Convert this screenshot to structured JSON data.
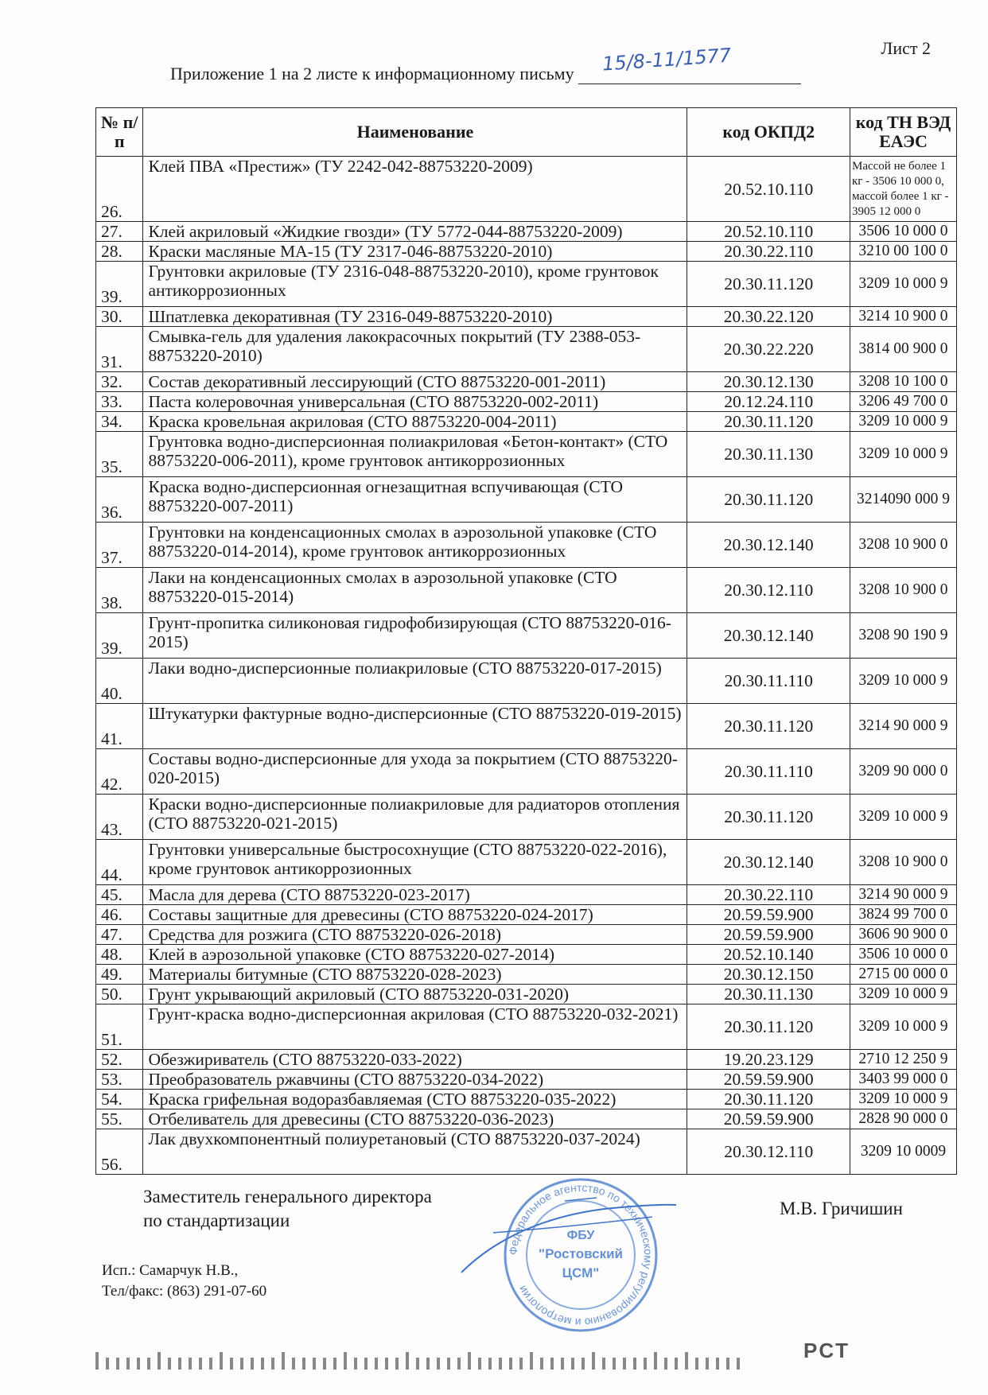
{
  "sheet_label": "Лист 2",
  "caption": "Приложение 1 на 2 листе к информационному письму",
  "handwritten_number": "15/8-11/1577",
  "table": {
    "headers": [
      "№ п/п",
      "Наименование",
      "код ОКПД2",
      "код ТН ВЭД ЕАЭС"
    ],
    "rows": [
      {
        "n": "26.",
        "name": "Клей ПВА «Престиж» (ТУ 2242-042-88753220-2009)",
        "okpd": "20.52.10.110",
        "tn": "Массой не более 1 кг - 3506 10 000 0, массой более 1 кг - 3905 12 000 0",
        "h": "big"
      },
      {
        "n": "27.",
        "name": "Клей акриловый «Жидкие гвозди» (ТУ 5772-044-88753220-2009)",
        "okpd": "20.52.10.110",
        "tn": "3506 10 000 0",
        "h": "s"
      },
      {
        "n": "28.",
        "name": "Краски масляные МА-15 (ТУ 2317-046-88753220-2010)",
        "okpd": "20.30.22.110",
        "tn": "3210 00 100 0",
        "h": "s"
      },
      {
        "n": "39.",
        "name": "Грунтовки акриловые (ТУ 2316-048-88753220-2010), кроме грунтовок антикоррозионных",
        "okpd": "20.30.11.120",
        "tn": "3209 10 000 9",
        "h": "d"
      },
      {
        "n": "30.",
        "name": "Шпатлевка декоративная  (ТУ 2316-049-88753220-2010)",
        "okpd": "20.30.22.120",
        "tn": "3214 10 900 0",
        "h": "s"
      },
      {
        "n": "31.",
        "name": "Смывка-гель для удаления лакокрасочных покрытий (ТУ 2388-053-88753220-2010)",
        "okpd": "20.30.22.220",
        "tn": "3814 00 900 0",
        "h": "d"
      },
      {
        "n": "32.",
        "name": "Состав декоративный лессирующий (СТО 88753220-001-2011)",
        "okpd": "20.30.12.130",
        "tn": "3208 10 100 0",
        "h": "s"
      },
      {
        "n": "33.",
        "name": "Паста колеровочная универсальная (СТО 88753220-002-2011)",
        "okpd": "20.12.24.110",
        "tn": "3206 49 700 0",
        "h": "s"
      },
      {
        "n": "34.",
        "name": "Краска кровельная акриловая (СТО 88753220-004-2011)",
        "okpd": "20.30.11.120",
        "tn": "3209 10 000 9",
        "h": "s"
      },
      {
        "n": "35.",
        "name": "Грунтовка водно-дисперсионная полиакриловая «Бетон-контакт» (СТО 88753220-006-2011), кроме грунтовок антикоррозионных",
        "okpd": "20.30.11.130",
        "tn": "3209 10 000 9",
        "h": "d"
      },
      {
        "n": "36.",
        "name": "Краска водно-дисперсионная огнезащитная вспучивающая (СТО 88753220-007-2011)",
        "okpd": "20.30.11.120",
        "tn": "3214090 000 9",
        "h": "d"
      },
      {
        "n": "37.",
        "name": "Грунтовки на конденсационных смолах в аэрозольной упаковке (СТО 88753220-014-2014), кроме грунтовок антикоррозионных",
        "okpd": "20.30.12.140",
        "tn": "3208 10 900 0",
        "h": "d"
      },
      {
        "n": "38.",
        "name": "Лаки на конденсационных смолах в аэрозольной упаковке (СТО 88753220-015-2014)",
        "okpd": "20.30.12.110",
        "tn": "3208 10 900 0",
        "h": "d"
      },
      {
        "n": "39.",
        "name": "Грунт-пропитка силиконовая гидрофобизирующая (СТО 88753220-016-2015)",
        "okpd": "20.30.12.140",
        "tn": "3208 90 190 9",
        "h": "d"
      },
      {
        "n": "40.",
        "name": "Лаки водно-дисперсионные полиакриловые (СТО 88753220-017-2015)",
        "okpd": "20.30.11.110",
        "tn": "3209 10 000 9",
        "h": "d"
      },
      {
        "n": "41.",
        "name": "Штукатурки фактурные водно-дисперсионные (СТО 88753220-019-2015)",
        "okpd": "20.30.11.120",
        "tn": "3214 90 000 9",
        "h": "d"
      },
      {
        "n": "42.",
        "name": "Составы водно-дисперсионные для ухода за покрытием (СТО 88753220-020-2015)",
        "okpd": "20.30.11.110",
        "tn": "3209 90 000 0",
        "h": "d"
      },
      {
        "n": "43.",
        "name": "Краски водно-дисперсионные полиакриловые для радиаторов отопления (СТО 88753220-021-2015)",
        "okpd": "20.30.11.120",
        "tn": "3209 10 000 9",
        "h": "d"
      },
      {
        "n": "44.",
        "name": "Грунтовки универсальные быстросохнущие (СТО 88753220-022-2016), кроме грунтовок антикоррозионных",
        "okpd": "20.30.12.140",
        "tn": "3208 10 900 0",
        "h": "d"
      },
      {
        "n": "45.",
        "name": "Масла для дерева (СТО 88753220-023-2017)",
        "okpd": "20.30.22.110",
        "tn": "3214 90 000 9",
        "h": "s"
      },
      {
        "n": "46.",
        "name": "Составы защитные для древесины (СТО 88753220-024-2017)",
        "okpd": "20.59.59.900",
        "tn": "3824 99 700 0",
        "h": "s"
      },
      {
        "n": "47.",
        "name": "Средства для розжига (СТО 88753220-026-2018)",
        "okpd": "20.59.59.900",
        "tn": "3606 90 900 0",
        "h": "s"
      },
      {
        "n": "48.",
        "name": "Клей в аэрозольной упаковке (СТО 88753220-027-2014)",
        "okpd": "20.52.10.140",
        "tn": "3506 10 000 0",
        "h": "s"
      },
      {
        "n": "49.",
        "name": "Материалы битумные (СТО 88753220-028-2023)",
        "okpd": "20.30.12.150",
        "tn": "2715 00 000 0",
        "h": "s"
      },
      {
        "n": "50.",
        "name": "Грунт укрывающий акриловый (СТО 88753220-031-2020)",
        "okpd": "20.30.11.130",
        "tn": "3209 10 000 9",
        "h": "s"
      },
      {
        "n": "51.",
        "name": "Грунт-краска водно-дисперсионная акриловая (СТО 88753220-032-2021)",
        "okpd": "20.30.11.120",
        "tn": "3209 10 000 9",
        "h": "d"
      },
      {
        "n": "52.",
        "name": "Обезжириватель (СТО 88753220-033-2022)",
        "okpd": "19.20.23.129",
        "tn": "2710 12 250 9",
        "h": "s"
      },
      {
        "n": "53.",
        "name": "Преобразователь ржавчины (СТО 88753220-034-2022)",
        "okpd": "20.59.59.900",
        "tn": "3403 99 000 0",
        "h": "s"
      },
      {
        "n": "54.",
        "name": "Краска грифельная водоразбавляемая (СТО 88753220-035-2022)",
        "okpd": "20.30.11.120",
        "tn": "3209 10 000 9",
        "h": "s"
      },
      {
        "n": "55.",
        "name": "Отбеливатель для древесины (СТО 88753220-036-2023)",
        "okpd": "20.59.59.900",
        "tn": "2828 90 000 0",
        "h": "s"
      },
      {
        "n": "56.",
        "name": "Лак двухкомпонентный полиуретановый (СТО 88753220-037-2024)",
        "okpd": "20.30.12.110",
        "tn": "3209 10 0009",
        "h": "d"
      }
    ]
  },
  "signature": {
    "position_line1": "Заместитель генерального директора",
    "position_line2": "по стандартизации",
    "name": "М.В. Гричишин"
  },
  "executor": {
    "line1": "Исп.: Самарчук Н.В.,",
    "line2": "Тел/факс: (863) 291-07-60"
  },
  "stamp": {
    "center_line1": "ФБУ",
    "center_line2": "\"Ростовский",
    "center_line3": "ЦСМ\"",
    "ring_text": "Федеральное агентство по техническому регулированию и метрологии"
  },
  "logo": "PCT",
  "colors": {
    "ink": "#1a1a1a",
    "stamp_blue": "#3f74c8"
  }
}
